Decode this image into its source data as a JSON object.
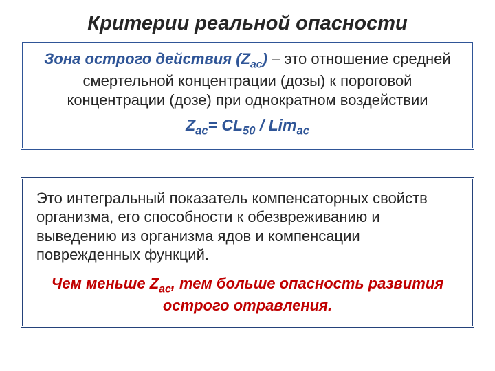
{
  "title": "Критерии реальной опасности",
  "box1": {
    "term_prefix": "Зона острого действия (Z",
    "term_sub": "ac",
    "term_suffix": ")",
    "definition_rest": " – это отношение средней смертельной концентрации (дозы) к пороговой концентрации (дозе) при однократном воздействии",
    "formula_parts": {
      "p1": "Z",
      "s1": "ac",
      "p2": "= CL",
      "s2": "50",
      "p3": " / Lim",
      "s3": "ac"
    },
    "border_color": "#2f5597",
    "term_color": "#2f5597"
  },
  "box2": {
    "explain": "Это интегральный показатель компенсаторных свойств организма, его способности к обезвреживанию и выведению из организма ядов и компенсации поврежденных функций.",
    "emph_parts": {
      "p1": "Чем меньше Z",
      "s1": "ac",
      "p2": ", тем больше опасность развития острого отравления."
    },
    "border_color": "#24427a",
    "emph_color": "#c00000"
  },
  "colors": {
    "background": "#ffffff",
    "text": "#262626"
  },
  "typography": {
    "title_fontsize": 29,
    "body_fontsize": 22,
    "formula_fontsize": 23,
    "font_family": "Arial"
  }
}
